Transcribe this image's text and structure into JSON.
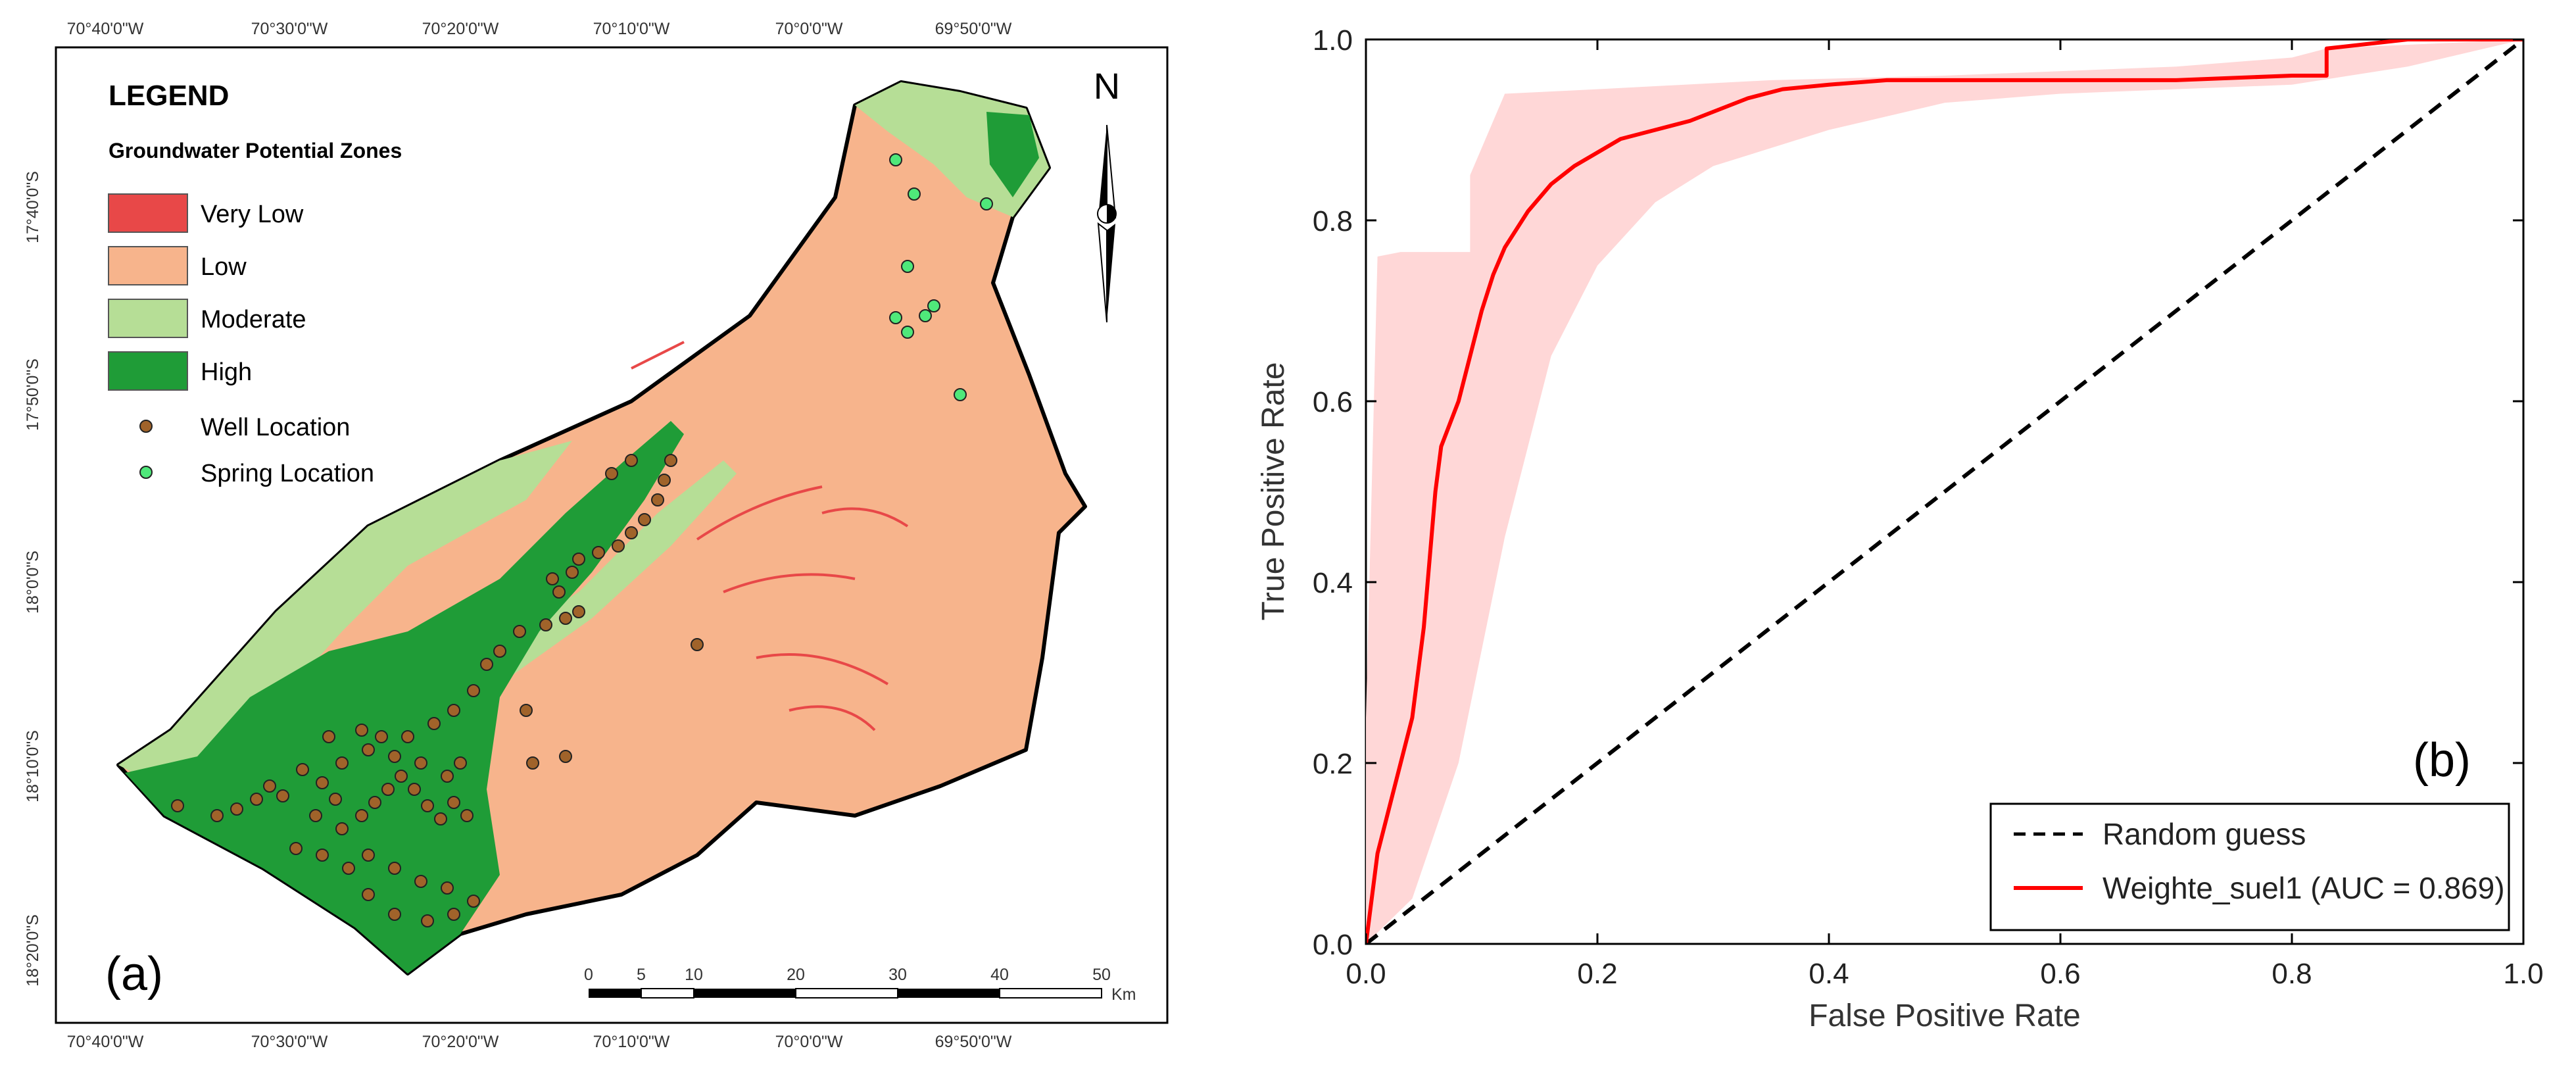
{
  "map": {
    "panel_label": "(a)",
    "lon_ticks": [
      "70°40'0\"W",
      "70°30'0\"W",
      "70°20'0\"W",
      "70°10'0\"W",
      "70°0'0\"W",
      "69°50'0\"W"
    ],
    "lat_ticks": [
      "17°40'0\"S",
      "17°50'0\"S",
      "18°0'0\"S",
      "18°10'0\"S",
      "18°20'0\"S"
    ],
    "legend": {
      "title": "LEGEND",
      "subtitle": "Groundwater Potential Zones",
      "zones": [
        {
          "label": "Very Low",
          "color": "#e84848"
        },
        {
          "label": "Low",
          "color": "#f7b48c"
        },
        {
          "label": "Moderate",
          "color": "#b6de96"
        },
        {
          "label": "High",
          "color": "#1f9c37"
        }
      ],
      "points": [
        {
          "label": "Well Location",
          "color": "#a0632a"
        },
        {
          "label": "Spring Location",
          "color": "#4fe87a"
        }
      ]
    },
    "north_label": "N",
    "scale_labels": [
      "0",
      "5",
      "10",
      "20",
      "30",
      "40",
      "50"
    ],
    "scale_unit": "Km"
  },
  "chart_data": {
    "type": "line",
    "panel_label": "(b)",
    "xlabel": "False Positive Rate",
    "ylabel": "True Positive Rate",
    "xlim": [
      0,
      1
    ],
    "ylim": [
      0,
      1
    ],
    "xticks": [
      "0.0",
      "0.2",
      "0.4",
      "0.6",
      "0.8",
      "1.0"
    ],
    "yticks": [
      "0.0",
      "0.2",
      "0.4",
      "0.6",
      "0.8",
      "1.0"
    ],
    "legend_position": "bottom-right",
    "series": [
      {
        "name": "Random guess",
        "style": "dashed",
        "color": "#000000",
        "x": [
          0,
          1
        ],
        "y": [
          0,
          1
        ]
      },
      {
        "name": "Weighte_suel1 (AUC = 0.869)",
        "style": "solid",
        "color": "#ff0000",
        "x": [
          0,
          0.005,
          0.01,
          0.02,
          0.03,
          0.04,
          0.05,
          0.06,
          0.065,
          0.08,
          0.09,
          0.1,
          0.11,
          0.12,
          0.13,
          0.14,
          0.16,
          0.18,
          0.2,
          0.22,
          0.25,
          0.28,
          0.3,
          0.33,
          0.36,
          0.4,
          0.45,
          0.5,
          0.6,
          0.7,
          0.8,
          0.83,
          0.83,
          0.9,
          1.0
        ],
        "y": [
          0,
          0.05,
          0.1,
          0.15,
          0.2,
          0.25,
          0.35,
          0.5,
          0.55,
          0.6,
          0.65,
          0.7,
          0.74,
          0.77,
          0.79,
          0.81,
          0.84,
          0.86,
          0.875,
          0.89,
          0.9,
          0.91,
          0.92,
          0.935,
          0.945,
          0.95,
          0.955,
          0.955,
          0.955,
          0.955,
          0.96,
          0.96,
          0.99,
          1.0,
          1.0
        ]
      },
      {
        "name": "confidence band",
        "style": "fill",
        "color": "#ffd7d7",
        "upper_x": [
          0,
          0.01,
          0.03,
          0.09,
          0.09,
          0.12,
          0.2,
          0.35,
          0.5,
          0.7,
          0.8,
          0.83,
          1.0
        ],
        "upper_y": [
          0.25,
          0.76,
          0.765,
          0.765,
          0.85,
          0.94,
          0.945,
          0.955,
          0.96,
          0.97,
          0.98,
          0.99,
          1.0
        ],
        "lower_x": [
          0,
          0.04,
          0.08,
          0.12,
          0.16,
          0.2,
          0.25,
          0.3,
          0.4,
          0.5,
          0.6,
          0.8,
          0.9,
          1.0
        ],
        "lower_y": [
          0,
          0.05,
          0.2,
          0.45,
          0.65,
          0.75,
          0.82,
          0.86,
          0.9,
          0.93,
          0.94,
          0.95,
          0.97,
          1.0
        ]
      }
    ]
  }
}
